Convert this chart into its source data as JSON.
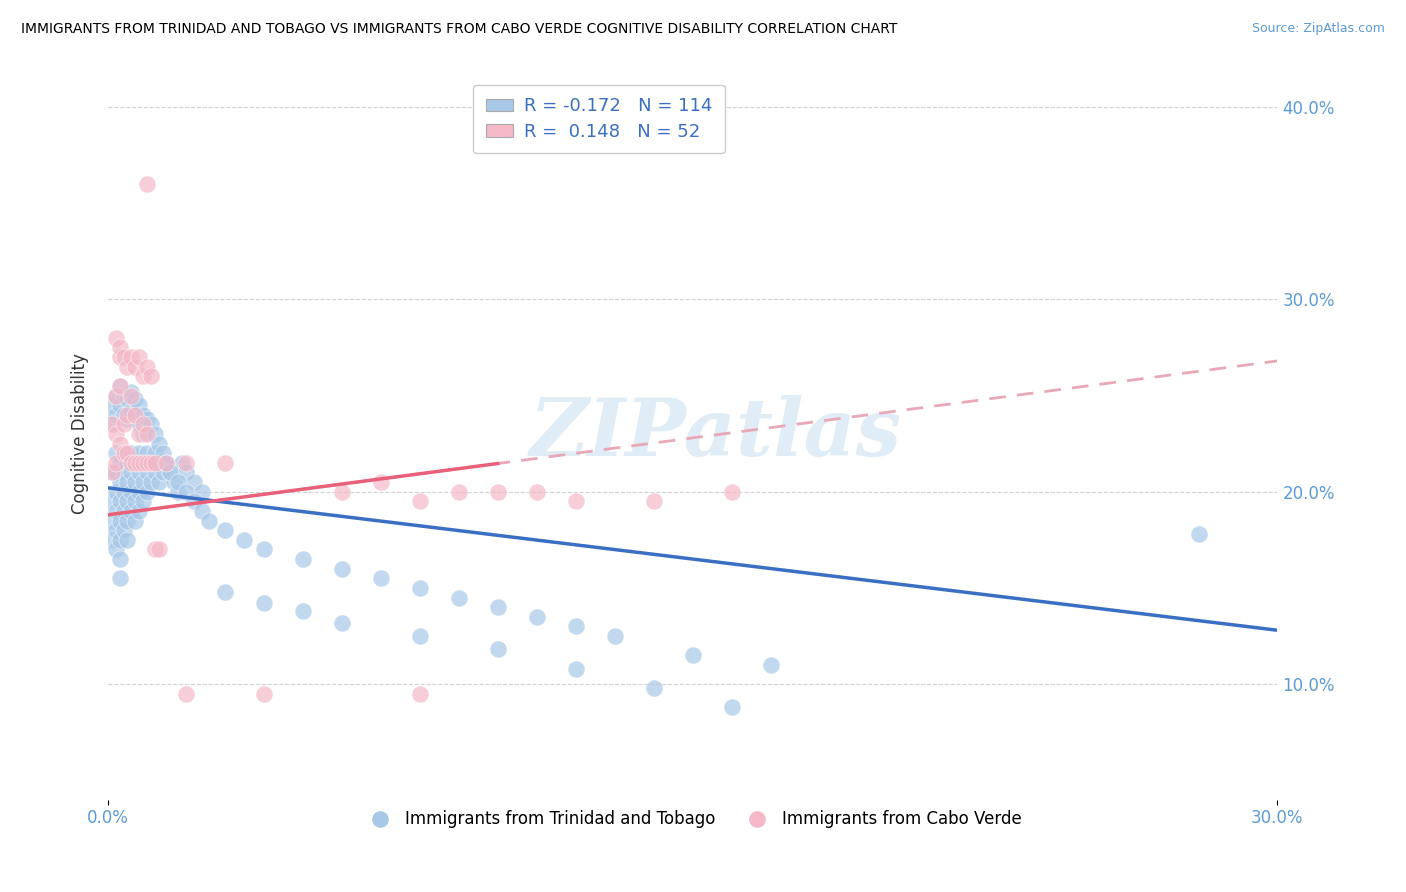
{
  "title": "IMMIGRANTS FROM TRINIDAD AND TOBAGO VS IMMIGRANTS FROM CABO VERDE COGNITIVE DISABILITY CORRELATION CHART",
  "source": "Source: ZipAtlas.com",
  "ylabel": "Cognitive Disability",
  "xlim": [
    0.0,
    0.3
  ],
  "ylim": [
    0.04,
    0.42
  ],
  "xtick_vals": [
    0.0,
    0.3
  ],
  "xtick_labels": [
    "0.0%",
    "30.0%"
  ],
  "ytick_vals": [
    0.1,
    0.2,
    0.3,
    0.4
  ],
  "ytick_labels": [
    "10.0%",
    "20.0%",
    "30.0%",
    "40.0%"
  ],
  "color_blue": "#a8c8e8",
  "color_pink": "#f4b8c8",
  "line_blue": "#3a6fc4",
  "line_pink_solid": "#e8607a",
  "line_pink_dashed": "#e8a8b8",
  "R_blue": -0.172,
  "N_blue": 114,
  "R_pink": 0.148,
  "N_pink": 52,
  "legend_label_blue": "Immigrants from Trinidad and Tobago",
  "legend_label_pink": "Immigrants from Cabo Verde",
  "watermark": "ZIPatlas",
  "background_color": "#ffffff",
  "blue_line_y0": 0.202,
  "blue_line_y1": 0.128,
  "pink_line_y0": 0.188,
  "pink_line_y1": 0.268,
  "blue_scatter_x": [
    0.001,
    0.001,
    0.001,
    0.001,
    0.002,
    0.002,
    0.002,
    0.002,
    0.002,
    0.002,
    0.003,
    0.003,
    0.003,
    0.003,
    0.003,
    0.003,
    0.003,
    0.004,
    0.004,
    0.004,
    0.004,
    0.004,
    0.005,
    0.005,
    0.005,
    0.005,
    0.005,
    0.006,
    0.006,
    0.006,
    0.006,
    0.007,
    0.007,
    0.007,
    0.007,
    0.008,
    0.008,
    0.008,
    0.008,
    0.009,
    0.009,
    0.009,
    0.01,
    0.01,
    0.01,
    0.011,
    0.011,
    0.012,
    0.012,
    0.013,
    0.013,
    0.014,
    0.015,
    0.016,
    0.017,
    0.018,
    0.019,
    0.02,
    0.022,
    0.024,
    0.001,
    0.001,
    0.002,
    0.002,
    0.003,
    0.003,
    0.004,
    0.004,
    0.005,
    0.005,
    0.006,
    0.006,
    0.007,
    0.007,
    0.008,
    0.008,
    0.009,
    0.009,
    0.01,
    0.011,
    0.012,
    0.013,
    0.014,
    0.015,
    0.016,
    0.018,
    0.02,
    0.022,
    0.024,
    0.026,
    0.03,
    0.035,
    0.04,
    0.05,
    0.06,
    0.07,
    0.08,
    0.09,
    0.1,
    0.11,
    0.12,
    0.13,
    0.15,
    0.17,
    0.28,
    0.03,
    0.04,
    0.05,
    0.06,
    0.08,
    0.1,
    0.12,
    0.14,
    0.16
  ],
  "blue_scatter_y": [
    0.21,
    0.195,
    0.185,
    0.175,
    0.22,
    0.21,
    0.2,
    0.19,
    0.18,
    0.17,
    0.215,
    0.205,
    0.195,
    0.185,
    0.175,
    0.165,
    0.155,
    0.22,
    0.21,
    0.2,
    0.19,
    0.18,
    0.215,
    0.205,
    0.195,
    0.185,
    0.175,
    0.22,
    0.21,
    0.2,
    0.19,
    0.215,
    0.205,
    0.195,
    0.185,
    0.22,
    0.21,
    0.2,
    0.19,
    0.215,
    0.205,
    0.195,
    0.22,
    0.21,
    0.2,
    0.215,
    0.205,
    0.22,
    0.21,
    0.215,
    0.205,
    0.21,
    0.215,
    0.21,
    0.205,
    0.2,
    0.215,
    0.21,
    0.205,
    0.2,
    0.245,
    0.235,
    0.25,
    0.24,
    0.255,
    0.245,
    0.25,
    0.24,
    0.248,
    0.238,
    0.252,
    0.242,
    0.248,
    0.238,
    0.245,
    0.235,
    0.24,
    0.23,
    0.238,
    0.235,
    0.23,
    0.225,
    0.22,
    0.215,
    0.21,
    0.205,
    0.2,
    0.195,
    0.19,
    0.185,
    0.18,
    0.175,
    0.17,
    0.165,
    0.16,
    0.155,
    0.15,
    0.145,
    0.14,
    0.135,
    0.13,
    0.125,
    0.115,
    0.11,
    0.178,
    0.148,
    0.142,
    0.138,
    0.132,
    0.125,
    0.118,
    0.108,
    0.098,
    0.088
  ],
  "pink_scatter_x": [
    0.001,
    0.001,
    0.002,
    0.002,
    0.002,
    0.003,
    0.003,
    0.003,
    0.004,
    0.004,
    0.005,
    0.005,
    0.006,
    0.006,
    0.007,
    0.007,
    0.008,
    0.008,
    0.009,
    0.009,
    0.01,
    0.01,
    0.011,
    0.012,
    0.002,
    0.003,
    0.004,
    0.005,
    0.006,
    0.007,
    0.008,
    0.009,
    0.01,
    0.011,
    0.012,
    0.013,
    0.02,
    0.03,
    0.06,
    0.07,
    0.08,
    0.09,
    0.1,
    0.11,
    0.12,
    0.14,
    0.16,
    0.02,
    0.04,
    0.08,
    0.01,
    0.015
  ],
  "pink_scatter_y": [
    0.235,
    0.21,
    0.25,
    0.23,
    0.215,
    0.27,
    0.255,
    0.225,
    0.235,
    0.22,
    0.24,
    0.22,
    0.25,
    0.215,
    0.24,
    0.215,
    0.23,
    0.215,
    0.235,
    0.215,
    0.23,
    0.215,
    0.215,
    0.215,
    0.28,
    0.275,
    0.27,
    0.265,
    0.27,
    0.265,
    0.27,
    0.26,
    0.265,
    0.26,
    0.17,
    0.17,
    0.215,
    0.215,
    0.2,
    0.205,
    0.195,
    0.2,
    0.2,
    0.2,
    0.195,
    0.195,
    0.2,
    0.095,
    0.095,
    0.095,
    0.36,
    0.215
  ]
}
